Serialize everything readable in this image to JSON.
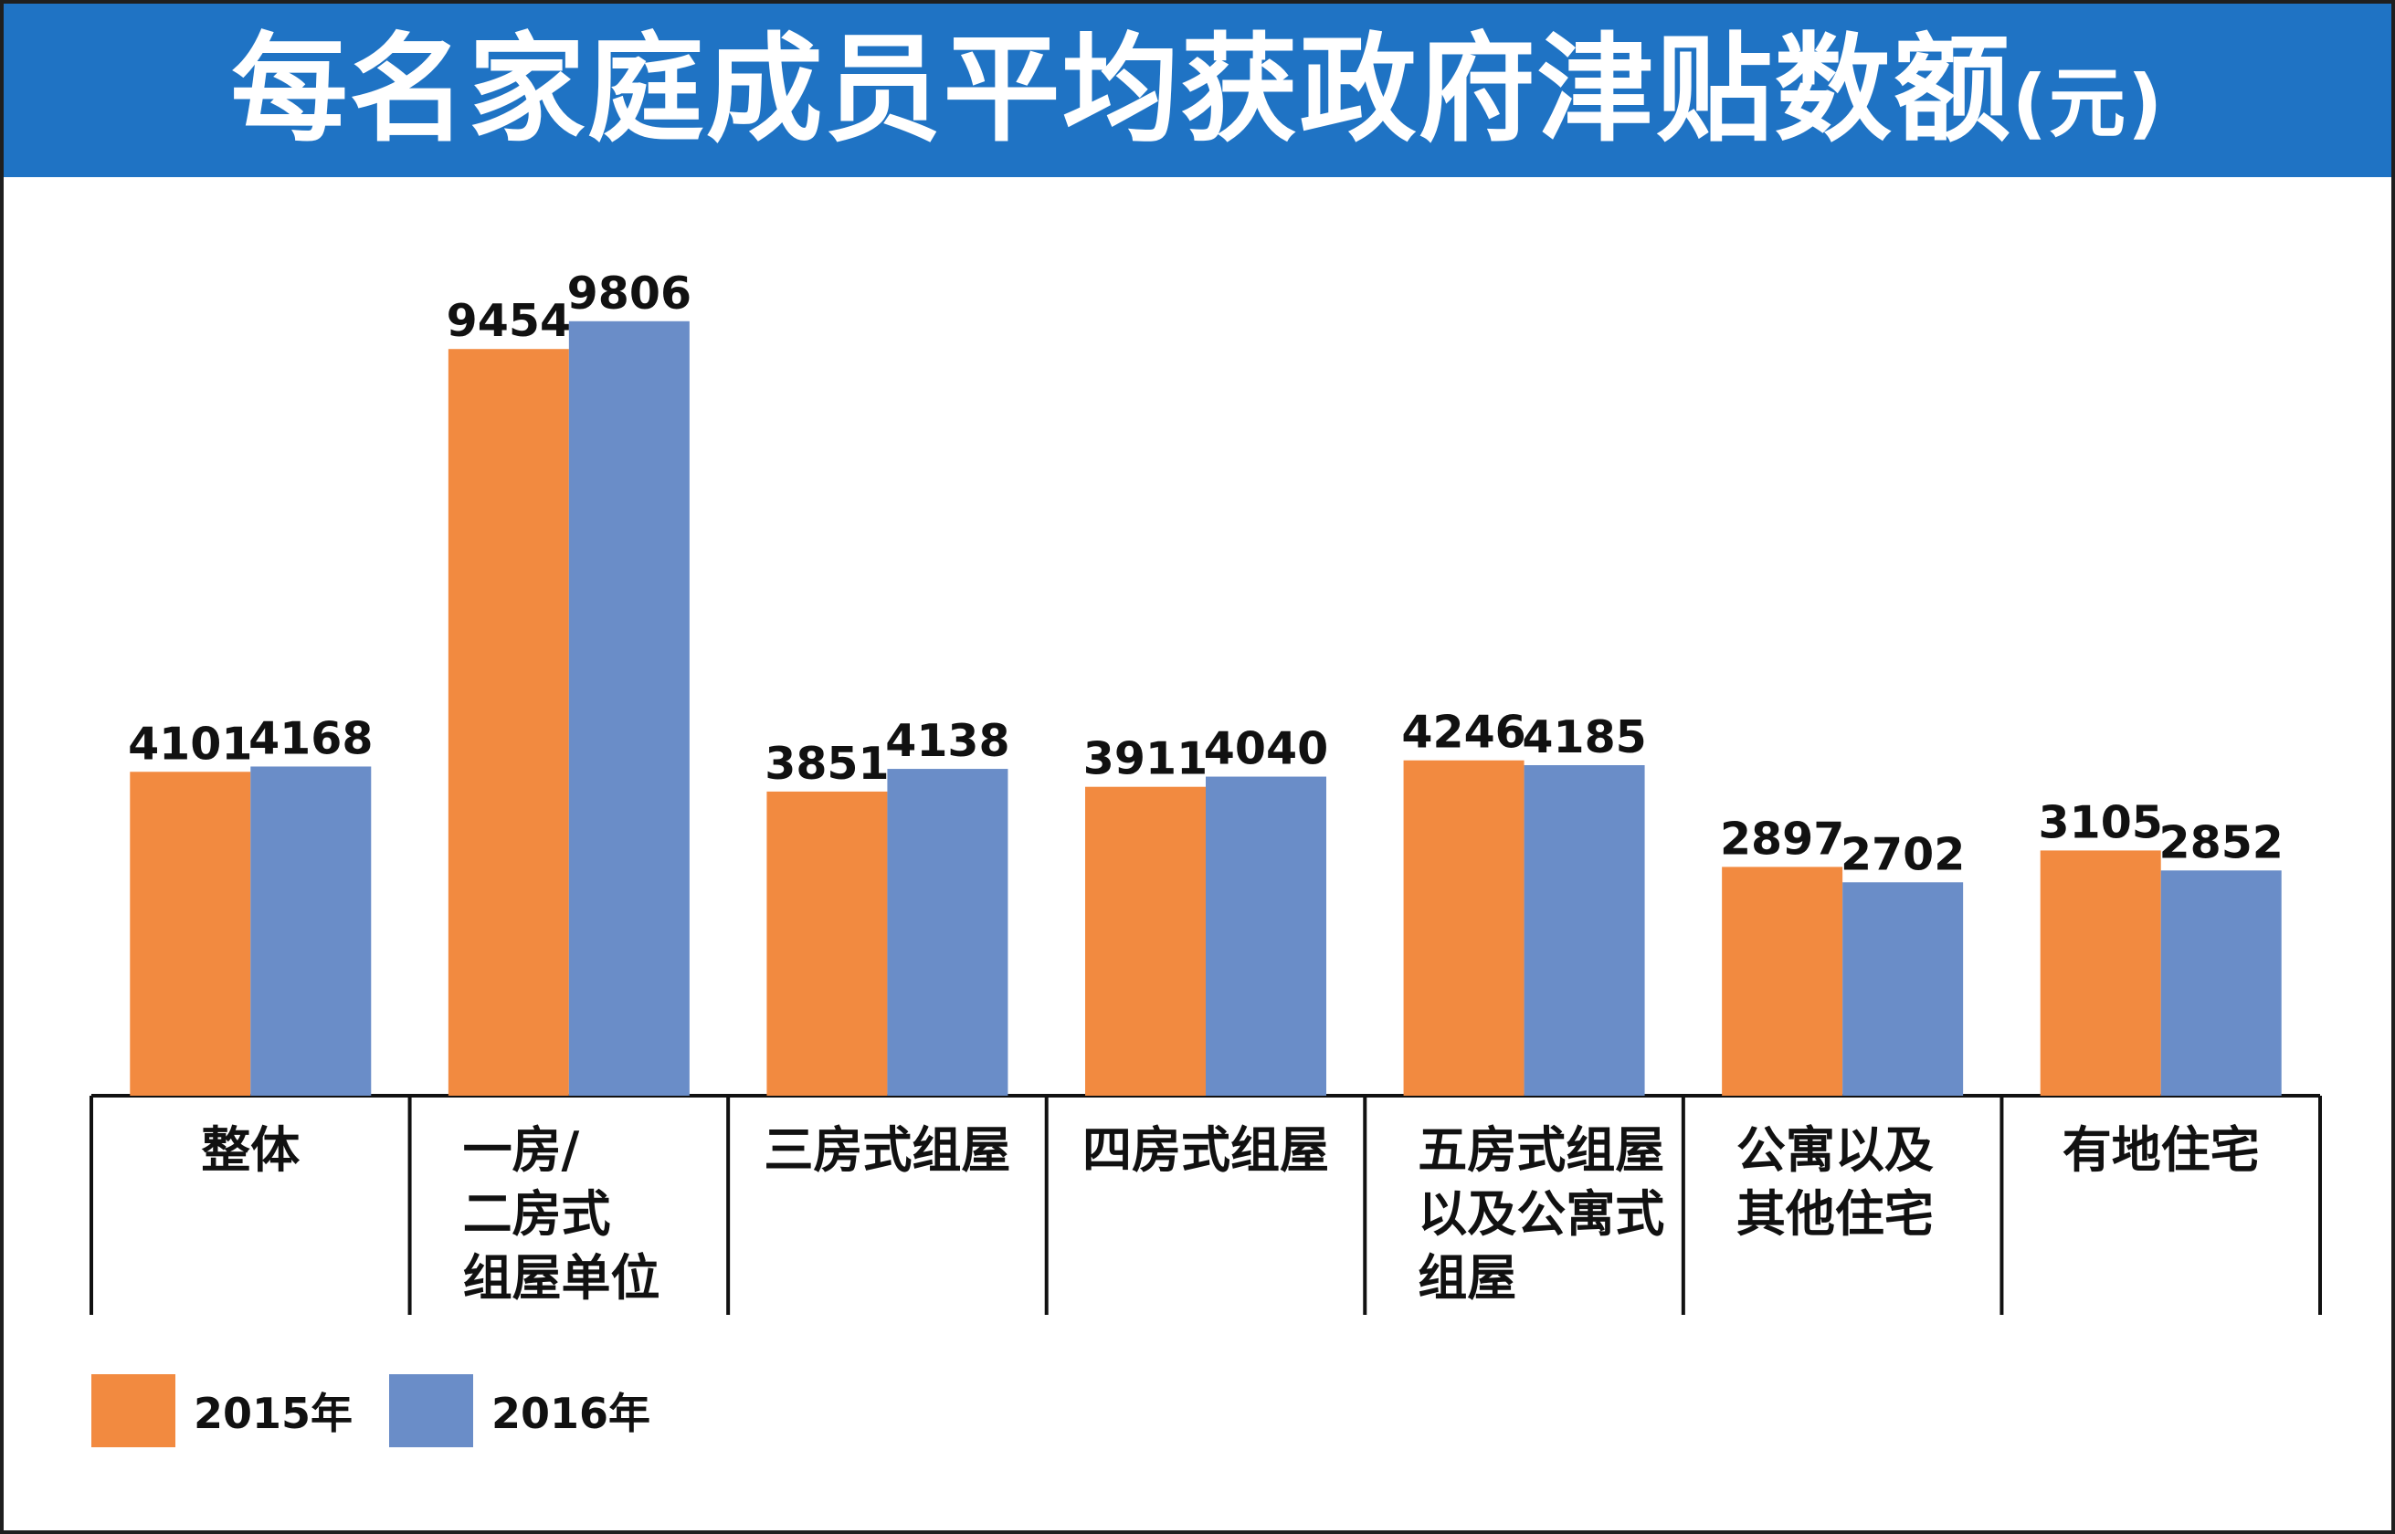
{
  "header": {
    "title": "每名家庭成员平均获政府津贴数额",
    "unit": "(元)"
  },
  "colors": {
    "title_bg": "#1f73c4",
    "series_2015": "#f28a40",
    "series_2016": "#6a8dc8"
  },
  "legend": {
    "items": [
      {
        "label": "2015年",
        "color": "#f28a40"
      },
      {
        "label": "2016年",
        "color": "#6a8dc8"
      }
    ]
  },
  "chart_data": {
    "type": "bar",
    "title": "每名家庭成员平均获政府津贴数额(元)",
    "xlabel": "",
    "ylabel": "",
    "categories": [
      [
        "整体"
      ],
      [
        "一房/",
        "二房式",
        "组屋单位"
      ],
      [
        "三房式组屋"
      ],
      [
        "四房式组屋"
      ],
      [
        "五房式组屋",
        "以及公寓式",
        "组屋"
      ],
      [
        "公寓以及",
        "其他住宅"
      ],
      [
        "有地住宅"
      ]
    ],
    "series": [
      {
        "name": "2015年",
        "color": "#f28a40",
        "values": [
          4101,
          9454,
          3851,
          3911,
          4246,
          2897,
          3105
        ]
      },
      {
        "name": "2016年",
        "color": "#6a8dc8",
        "values": [
          4168,
          9806,
          4138,
          4040,
          4185,
          2702,
          2852
        ]
      }
    ],
    "ylim": [
      0,
      10000
    ],
    "grid": false,
    "legend_position": "bottom-left",
    "data_labels": true
  }
}
